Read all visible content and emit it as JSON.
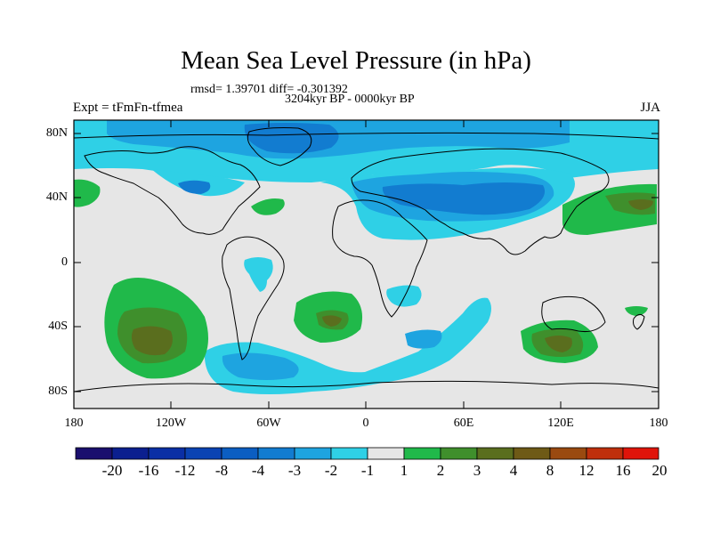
{
  "title": "Mean Sea Level Pressure (in hPa)",
  "stats": "rmsd= 1.39701 diff= -0.301392",
  "period": "3204kyr BP - 0000kyr BP",
  "experiment": "Expt = tFmFn-tfmea",
  "season": "JJA",
  "lat_labels": [
    "80N",
    "40N",
    "0",
    "40S",
    "80S"
  ],
  "lon_labels": [
    "180",
    "120W",
    "60W",
    "0",
    "60E",
    "120E",
    "180"
  ],
  "colorbar": {
    "labels": [
      "-20",
      "-16",
      "-12",
      "-8",
      "-4",
      "-3",
      "-2",
      "-1",
      "1",
      "2",
      "3",
      "4",
      "8",
      "12",
      "16",
      "20"
    ],
    "colors": [
      "#1a0f6e",
      "#0b1f8f",
      "#0a2fa5",
      "#0a43b3",
      "#0b5ec2",
      "#127cd0",
      "#1ea4e0",
      "#2fd0e6",
      "#e6e6e6",
      "#20b94a",
      "#3f8f2c",
      "#5a6e1e",
      "#6e5a16",
      "#9a4a10",
      "#bf2f0c",
      "#e0140a"
    ]
  },
  "colors": {
    "background": "#e6e6e6",
    "cyan": "#2fd0e6",
    "light_blue": "#1ea4e0",
    "mid_blue": "#127cd0",
    "green": "#20b94a",
    "dark_green": "#3f8f2c",
    "olive": "#5a6e1e"
  }
}
